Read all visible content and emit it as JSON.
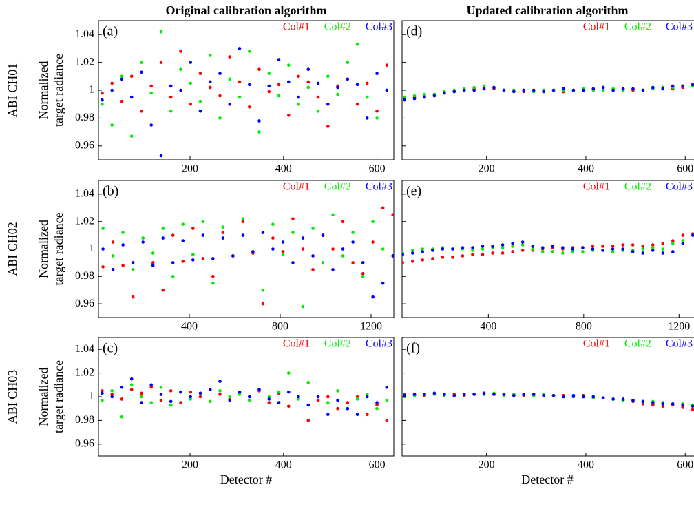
{
  "column_titles": [
    "Original calibration algorithm",
    "Updated calibration algorithm"
  ],
  "row_labels": [
    "ABI CH01",
    "ABI CH02",
    "ABI CH03"
  ],
  "chart_data": [
    {
      "type": "scatter",
      "panel_label": "(a)",
      "ylabel": [
        "Normalized",
        "target radiance"
      ],
      "x": [
        12,
        33,
        54,
        75,
        96,
        117,
        138,
        159,
        180,
        201,
        222,
        243,
        264,
        285,
        306,
        327,
        348,
        369,
        390,
        411,
        432,
        453,
        474,
        495,
        516,
        537,
        558,
        579,
        600,
        621
      ],
      "series": [
        {
          "name": "Col#1",
          "color": "#ff0000",
          "values": [
            0.998,
            1.005,
            0.992,
            1.01,
            0.985,
            1.003,
            1.02,
            0.995,
            1.028,
            0.99,
            1.012,
            1.002,
            0.996,
            1.024,
            1.006,
            0.988,
            1.015,
            0.999,
            1.004,
            0.982,
            1.01,
            1.006,
            0.995,
            0.974,
            1.003,
            1.008,
            0.99,
            1.005,
            0.985,
            1.018
          ]
        },
        {
          "name": "Col#2",
          "color": "#00ee00",
          "values": [
            0.99,
            0.975,
            1.01,
            0.967,
            1.02,
            0.998,
            1.042,
            0.985,
            1.015,
            1.005,
            0.992,
            1.025,
            0.98,
            1.008,
            0.995,
            1.028,
            0.97,
            1.012,
            0.996,
            1.018,
            0.99,
            1.002,
            0.985,
            1.01,
            0.997,
            1.02,
            1.033,
            0.995,
            0.98,
            1.0
          ]
        },
        {
          "name": "Col#3",
          "color": "#0000ff",
          "values": [
            0.993,
            1.0,
            1.008,
            0.995,
            1.013,
            0.975,
            0.953,
            1.003,
            1.0,
            1.02,
            0.985,
            1.006,
            1.012,
            0.99,
            1.03,
            1.004,
            0.978,
            1.003,
            1.022,
            1.006,
            0.995,
            1.015,
            1.005,
            0.99,
            1.002,
            1.008,
            1.004,
            0.98,
            1.012,
            1.0
          ]
        }
      ],
      "xlim": [
        4,
        636
      ],
      "xticks": [
        200,
        400,
        600
      ],
      "ylim": [
        0.95,
        1.05
      ],
      "yticks": [
        0.96,
        0.98,
        1,
        1.02,
        1.04
      ]
    },
    {
      "type": "scatter",
      "panel_label": "(b)",
      "ylabel": [
        "Normalized",
        "target radiance"
      ],
      "x": [
        20,
        64,
        108,
        152,
        196,
        240,
        284,
        328,
        372,
        416,
        460,
        504,
        548,
        592,
        636,
        680,
        724,
        768,
        812,
        856,
        900,
        944,
        988,
        1032,
        1076,
        1120,
        1164,
        1208,
        1252,
        1296
      ],
      "series": [
        {
          "name": "Col#1",
          "color": "#ff0000",
          "values": [
            0.987,
            1.005,
            0.988,
            0.965,
            1.008,
            0.99,
            0.97,
            1.01,
            0.991,
            1.015,
            0.993,
            0.98,
            1.012,
            0.995,
            1.02,
            0.997,
            0.96,
            1.008,
            0.998,
            1.022,
            1.0,
            0.985,
            1.01,
            1.0,
            1.02,
            0.99,
            0.982,
            1.005,
            1.03,
            1.025
          ]
        },
        {
          "name": "Col#2",
          "color": "#00ee00",
          "values": [
            1.015,
            0.995,
            1.012,
            0.985,
            1.008,
            0.997,
            1.015,
            0.98,
            1.018,
            0.996,
            1.02,
            0.975,
            1.016,
            0.995,
            1.022,
            0.998,
            0.97,
            1.018,
            0.996,
            1.012,
            0.958,
            1.015,
            0.99,
            1.025,
            0.995,
            1.012,
            0.98,
            1.02,
            1.0,
            0.995
          ]
        },
        {
          "name": "Col#3",
          "color": "#0000ff",
          "values": [
            1.0,
            0.985,
            1.003,
            0.99,
            1.005,
            0.988,
            1.008,
            0.99,
            1.006,
            0.992,
            1.01,
            0.993,
            1.008,
            0.995,
            1.01,
            0.998,
            1.012,
            1.0,
            1.005,
            0.99,
            1.008,
            0.995,
            1.01,
            0.985,
            1.0,
            1.005,
            0.99,
            0.965,
            0.975,
            0.995
          ]
        }
      ],
      "xlim": [
        0,
        1300
      ],
      "xticks": [
        400,
        800,
        1200
      ],
      "ylim": [
        0.95,
        1.05
      ],
      "yticks": [
        0.96,
        0.98,
        1,
        1.02,
        1.04
      ]
    },
    {
      "type": "scatter",
      "panel_label": "(c)",
      "ylabel": [
        "Normalized",
        "target radiance"
      ],
      "xlabel": "Detector #",
      "x": [
        12,
        33,
        54,
        75,
        96,
        117,
        138,
        159,
        180,
        201,
        222,
        243,
        264,
        285,
        306,
        327,
        348,
        369,
        390,
        411,
        432,
        453,
        474,
        495,
        516,
        537,
        558,
        579,
        600,
        621
      ],
      "series": [
        {
          "name": "Col#1",
          "color": "#ff0000",
          "values": [
            1.005,
            1.002,
            0.998,
            1.006,
            1.003,
            1.008,
            0.997,
            1.005,
            0.995,
            1.004,
            1.0,
            1.006,
            1.002,
            0.998,
            1.004,
            1.0,
            1.005,
            0.995,
            1.003,
            0.992,
            1.0,
            0.98,
            0.997,
            1.0,
            0.99,
            0.995,
            1.0,
            0.985,
            0.993,
            0.98
          ]
        },
        {
          "name": "Col#2",
          "color": "#00ee00",
          "values": [
            0.997,
            1.005,
            0.983,
            1.01,
            1.0,
            0.995,
            1.008,
            0.993,
            1.004,
            0.998,
            1.003,
            0.996,
            1.005,
            1.0,
            1.002,
            0.997,
            1.006,
            1.0,
            1.004,
            1.02,
            0.998,
            1.012,
            1.0,
            0.995,
            1.005,
            0.99,
            0.998,
            1.002,
            0.99,
            0.997
          ]
        },
        {
          "name": "Col#3",
          "color": "#0000ff",
          "values": [
            1.003,
            1.0,
            1.008,
            1.015,
            0.995,
            1.01,
            1.002,
            0.996,
            1.004,
            1.0,
            1.003,
            1.006,
            1.013,
            0.997,
            1.004,
            1.0,
            1.006,
            0.998,
            0.995,
            1.004,
            1.0,
            0.993,
            1.0,
            0.985,
            0.997,
            0.99,
            0.985,
            1.0,
            0.995,
            1.008
          ]
        }
      ],
      "xlim": [
        4,
        636
      ],
      "xticks": [
        200,
        400,
        600
      ],
      "ylim": [
        0.95,
        1.05
      ],
      "yticks": [
        0.96,
        0.98,
        1,
        1.02,
        1.04
      ]
    },
    {
      "type": "scatter",
      "panel_label": "(d)",
      "x": [
        35,
        55,
        75,
        95,
        115,
        135,
        155,
        175,
        195,
        215,
        235,
        255,
        275,
        295,
        315,
        335,
        355,
        375,
        395,
        415,
        435,
        455,
        475,
        495,
        515,
        535,
        555,
        575,
        595,
        615
      ],
      "series": [
        {
          "name": "Col#1",
          "color": "#ff0000",
          "values": [
            0.994,
            0.995,
            0.996,
            0.997,
            0.998,
            0.999,
            1.0,
            1.001,
            1.002,
            1.001,
            1.0,
            1.0,
            0.999,
            1.0,
            1.0,
            1.0,
            0.999,
            1.0,
            1.0,
            1.001,
            1.0,
            1.0,
            1.001,
            1.0,
            1.0,
            1.001,
            1.002,
            1.001,
            1.002,
            1.003
          ]
        },
        {
          "name": "Col#2",
          "color": "#00ee00",
          "values": [
            0.995,
            0.996,
            0.997,
            0.997,
            0.999,
            1.0,
            1.001,
            1.002,
            1.003,
            1.002,
            1.0,
            1.0,
            1.0,
            0.999,
            1.0,
            1.0,
            1.0,
            1.0,
            1.001,
            1.0,
            1.0,
            1.001,
            1.0,
            1.001,
            1.0,
            1.001,
            1.002,
            1.002,
            1.003,
            1.003
          ]
        },
        {
          "name": "Col#3",
          "color": "#0000ff",
          "values": [
            0.993,
            0.994,
            0.995,
            0.996,
            0.998,
            0.999,
            1.0,
            1.0,
            1.001,
            1.002,
            1.0,
            0.999,
            1.0,
            1.0,
            0.999,
            1.0,
            1.001,
            1.0,
            1.0,
            1.001,
            1.002,
            1.0,
            1.001,
            1.001,
            1.0,
            1.002,
            1.001,
            1.003,
            1.003,
            1.004
          ]
        }
      ],
      "xlim": [
        30,
        626
      ],
      "xticks": [
        200,
        400,
        600
      ],
      "ylim": [
        0.95,
        1.05
      ],
      "yticks": [
        0.96,
        0.98,
        1,
        1.02,
        1.04
      ]
    },
    {
      "type": "scatter",
      "panel_label": "(e)",
      "x": [
        40,
        82,
        124,
        166,
        208,
        250,
        292,
        334,
        376,
        418,
        460,
        502,
        544,
        586,
        628,
        670,
        712,
        754,
        796,
        838,
        880,
        922,
        964,
        1006,
        1048,
        1090,
        1132,
        1174,
        1216,
        1258
      ],
      "series": [
        {
          "name": "Col#1",
          "color": "#ff0000",
          "values": [
            0.99,
            0.991,
            0.992,
            0.993,
            0.994,
            0.994,
            0.995,
            0.996,
            0.996,
            0.997,
            0.997,
            0.998,
            0.999,
            0.999,
            1.0,
            1.001,
            1.0,
            1.001,
            1.001,
            1.002,
            1.002,
            1.002,
            1.003,
            1.003,
            1.002,
            1.003,
            1.004,
            1.006,
            1.01,
            1.011
          ]
        },
        {
          "name": "Col#2",
          "color": "#00ee00",
          "values": [
            0.997,
            0.999,
            1.0,
            1.0,
            1.001,
            1.0,
            1.0,
            0.999,
            1.0,
            1.001,
            1.001,
            1.002,
            1.003,
            1.0,
            0.998,
            0.998,
            0.997,
            0.998,
            0.998,
            0.999,
            0.999,
            0.998,
            0.999,
            0.999,
            1.0,
            1.001,
            1.0,
            1.004,
            1.006,
            1.01
          ]
        },
        {
          "name": "Col#3",
          "color": "#0000ff",
          "values": [
            0.996,
            0.997,
            0.998,
            0.999,
            1.0,
            1.0,
            1.001,
            1.001,
            1.002,
            1.002,
            1.003,
            1.004,
            1.005,
            1.002,
            1.001,
            1.002,
            1.001,
            1.0,
            1.001,
            1.0,
            0.999,
            1.0,
            1.0,
            0.998,
            0.997,
            0.999,
            0.997,
            0.998,
            1.004,
            1.01
          ]
        }
      ],
      "xlim": [
        38,
        1280
      ],
      "xticks": [
        400,
        800,
        1200
      ],
      "ylim": [
        0.95,
        1.05
      ],
      "yticks": [
        0.96,
        0.98,
        1,
        1.02,
        1.04
      ]
    },
    {
      "type": "scatter",
      "panel_label": "(f)",
      "xlabel": "Detector #",
      "x": [
        35,
        55,
        75,
        95,
        115,
        135,
        155,
        175,
        195,
        215,
        235,
        255,
        275,
        295,
        315,
        335,
        355,
        375,
        395,
        415,
        435,
        455,
        475,
        495,
        515,
        535,
        555,
        575,
        595,
        615
      ],
      "series": [
        {
          "name": "Col#1",
          "color": "#ff0000",
          "values": [
            1.002,
            1.002,
            1.001,
            1.003,
            1.002,
            1.002,
            1.001,
            1.002,
            1.003,
            1.002,
            1.002,
            1.002,
            1.001,
            1.002,
            1.002,
            1.001,
            1.001,
            1.0,
            1.001,
            1.0,
            0.999,
            0.998,
            0.997,
            0.996,
            0.994,
            0.993,
            0.992,
            0.993,
            0.991,
            0.989
          ]
        },
        {
          "name": "Col#2",
          "color": "#00ee00",
          "values": [
            1.0,
            1.001,
            1.002,
            1.002,
            1.001,
            1.001,
            1.002,
            1.002,
            1.002,
            1.003,
            1.001,
            1.002,
            1.002,
            1.001,
            1.002,
            1.001,
            1.0,
            1.001,
            1.0,
            0.999,
            0.999,
            0.998,
            0.997,
            0.997,
            0.996,
            0.996,
            0.995,
            0.994,
            0.994,
            0.993
          ]
        },
        {
          "name": "Col#3",
          "color": "#0000ff",
          "values": [
            1.001,
            1.002,
            1.002,
            1.003,
            1.002,
            1.001,
            1.002,
            1.002,
            1.003,
            1.002,
            1.002,
            1.001,
            1.002,
            1.002,
            1.001,
            1.001,
            1.0,
            1.001,
            1.0,
            1.0,
            0.999,
            0.998,
            0.998,
            0.997,
            0.996,
            0.995,
            0.994,
            0.994,
            0.993,
            0.992
          ]
        }
      ],
      "xlim": [
        30,
        626
      ],
      "xticks": [
        200,
        400,
        600
      ],
      "ylim": [
        0.95,
        1.05
      ],
      "yticks": [
        0.96,
        0.98,
        1,
        1.02,
        1.04
      ]
    }
  ]
}
